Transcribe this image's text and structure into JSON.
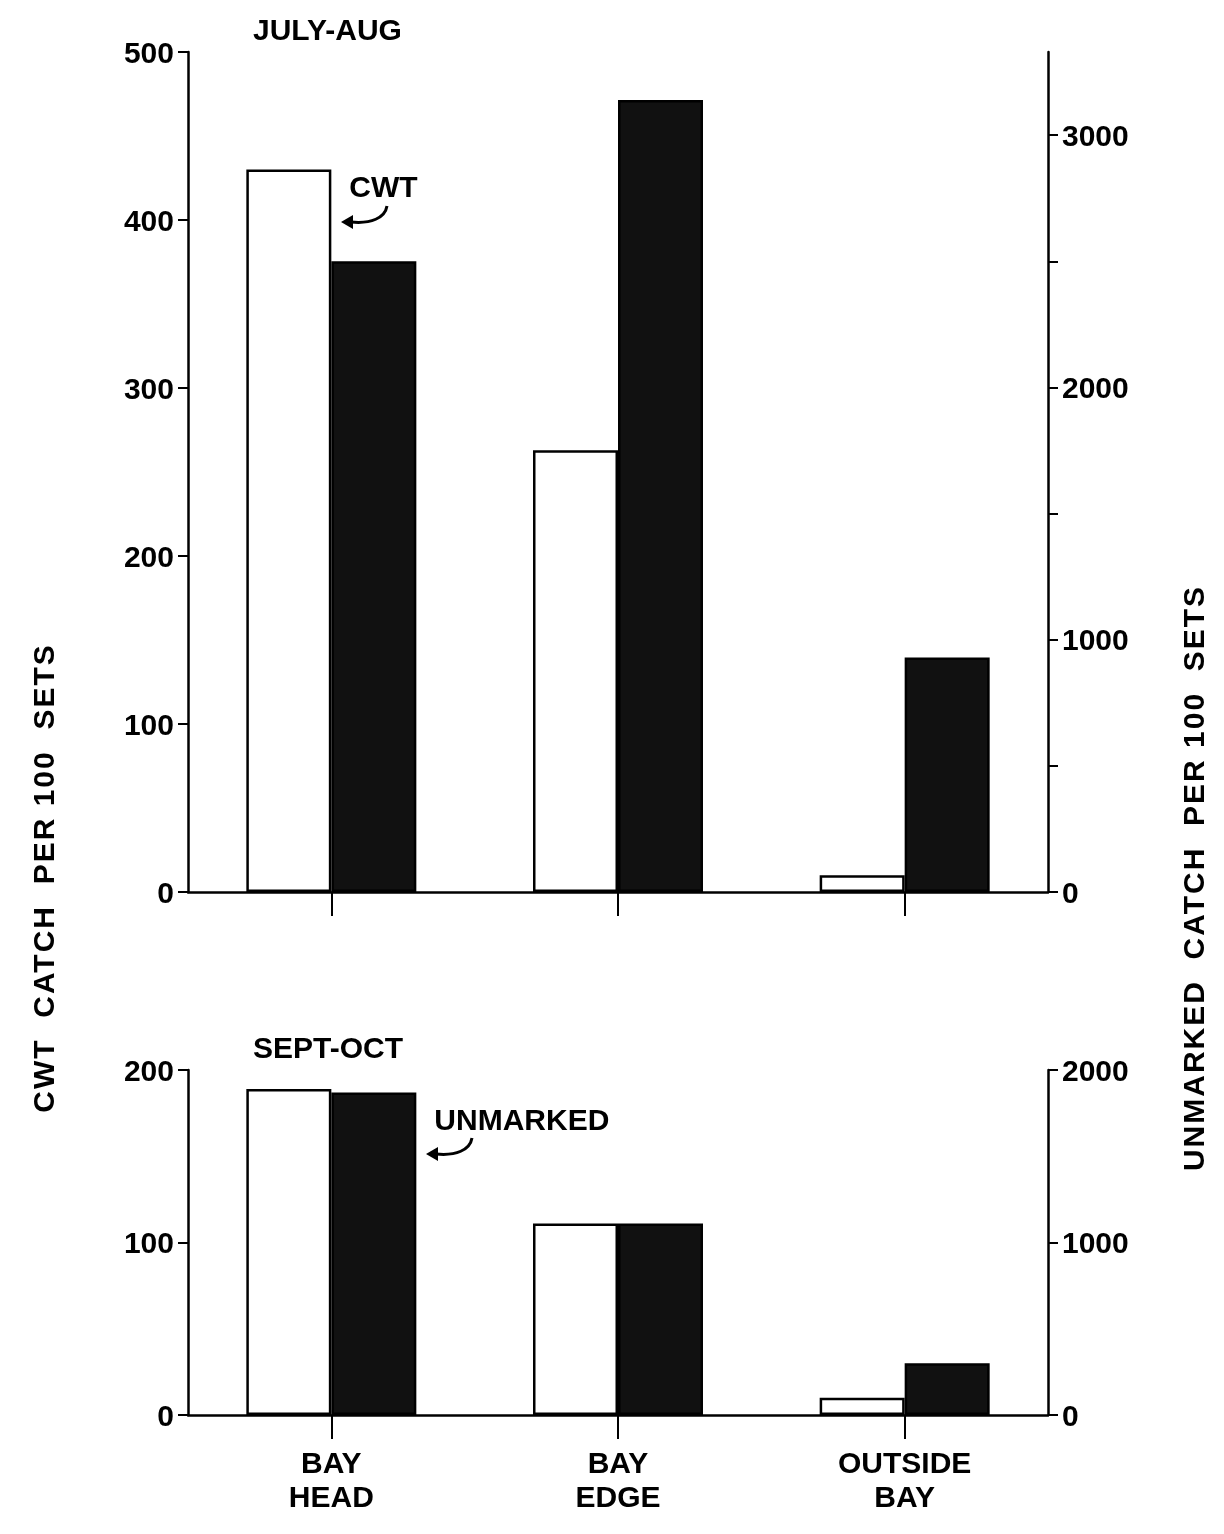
{
  "chart_data": [
    {
      "type": "bar",
      "title": "JULY-AUG",
      "ylabel": "CWT  CATCH  PER 100  SETS",
      "y2label": "UNMARKED  CATCH  PER 100  SETS",
      "categories": [
        null,
        null,
        null
      ],
      "series": [
        {
          "name": "CWT",
          "color": "#ffffff",
          "values": [
            430,
            263,
            10
          ]
        },
        {
          "color": "#111111",
          "axis": "y2",
          "values": [
            2500,
            3140,
            930
          ]
        }
      ],
      "ylim": [
        0,
        500
      ],
      "yticks": [
        0,
        100,
        200,
        300,
        400,
        500
      ],
      "y2lim": [
        0,
        3330
      ],
      "y2ticks": [
        0,
        {
          "value": 500,
          "label": null
        },
        1000,
        {
          "value": 1500,
          "label": null
        },
        2000,
        {
          "value": 2500,
          "label": null
        },
        3000
      ],
      "tick_labels": "y",
      "grid": false,
      "legend": false
    },
    {
      "type": "bar",
      "title": "SEPT-OCT",
      "categories": [
        "BAY\nHEAD",
        "BAY\nEDGE",
        "OUTSIDE\nBAY"
      ],
      "series": [
        {
          "color": "#ffffff",
          "values": [
            189,
            111,
            10
          ]
        },
        {
          "name": "UNMARKED",
          "color": "#111111",
          "axis": "y2",
          "values": [
            1870,
            1110,
            300
          ]
        }
      ],
      "ylim": [
        0,
        200
      ],
      "yticks": [
        0,
        100,
        200
      ],
      "y2lim": [
        0,
        2000
      ],
      "y2ticks": [
        0,
        1000,
        2000
      ],
      "grid": false,
      "legend": false
    }
  ]
}
